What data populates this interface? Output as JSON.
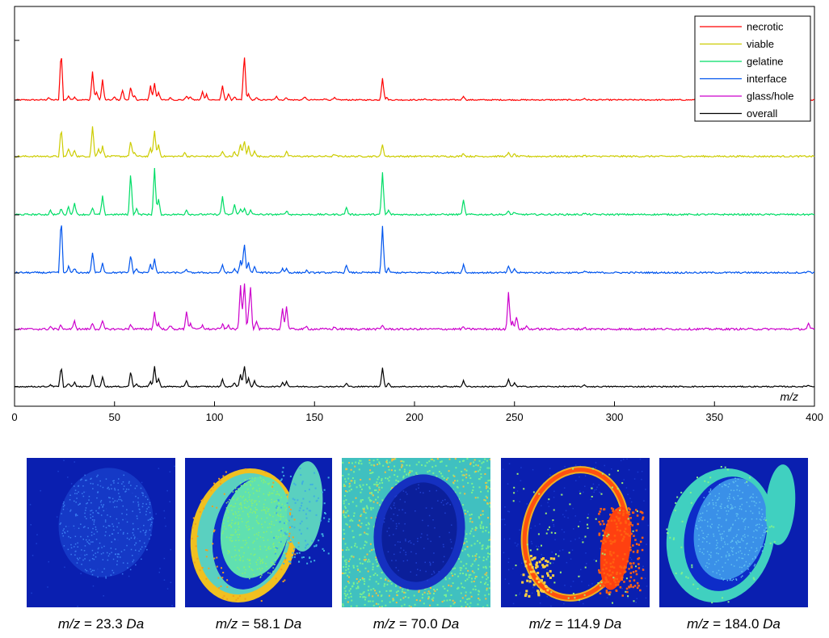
{
  "chart_data": {
    "type": "line",
    "xlabel": "m/z",
    "ylabel": "",
    "xlim": [
      0,
      400
    ],
    "xticks": [
      0,
      50,
      100,
      150,
      200,
      250,
      300,
      350,
      400
    ],
    "xtick_labels": [
      "0",
      "50",
      "100",
      "150",
      "200",
      "250",
      "300",
      "350",
      "400"
    ],
    "legend_position": "top-right",
    "series": [
      {
        "name": "necrotic",
        "color": "#ff0000",
        "baseline_noise": 0.3,
        "peaks": [
          [
            17,
            0.6
          ],
          [
            23.3,
            12.5
          ],
          [
            27,
            1
          ],
          [
            30,
            0.8
          ],
          [
            39,
            7
          ],
          [
            41,
            2
          ],
          [
            44,
            5
          ],
          [
            50,
            0.7
          ],
          [
            54,
            2.4
          ],
          [
            58.1,
            3.2
          ],
          [
            60,
            1
          ],
          [
            68,
            3.5
          ],
          [
            70,
            4.2
          ],
          [
            72,
            2
          ],
          [
            78,
            0.6
          ],
          [
            86,
            1
          ],
          [
            88,
            0.8
          ],
          [
            94,
            2
          ],
          [
            96,
            1.4
          ],
          [
            104,
            3.5
          ],
          [
            107,
            1.5
          ],
          [
            110,
            0.8
          ],
          [
            114.9,
            11.5
          ],
          [
            117,
            1.5
          ],
          [
            121,
            0.5
          ],
          [
            131,
            1
          ],
          [
            136,
            0.6
          ],
          [
            145,
            0.8
          ],
          [
            155,
            0.4
          ],
          [
            160,
            0.5
          ],
          [
            184,
            5.5
          ],
          [
            186,
            0.6
          ],
          [
            205,
            0.3
          ],
          [
            224.5,
            1
          ],
          [
            285,
            0.4
          ]
        ]
      },
      {
        "name": "viable",
        "color": "#cccc00",
        "baseline_noise": 0.4,
        "peaks": [
          [
            23.3,
            7
          ],
          [
            27,
            2
          ],
          [
            30,
            1.5
          ],
          [
            39,
            7.5
          ],
          [
            42,
            2
          ],
          [
            44,
            2.5
          ],
          [
            58.1,
            3.8
          ],
          [
            60,
            1
          ],
          [
            68,
            2
          ],
          [
            70,
            6.5
          ],
          [
            72,
            3
          ],
          [
            85,
            1
          ],
          [
            104,
            1.2
          ],
          [
            110,
            1.2
          ],
          [
            113,
            3
          ],
          [
            114.9,
            4
          ],
          [
            117,
            2.5
          ],
          [
            120,
            1.5
          ],
          [
            136,
            1.2
          ],
          [
            160,
            0.5
          ],
          [
            184,
            3
          ],
          [
            224.5,
            0.8
          ],
          [
            247,
            0.8
          ],
          [
            250,
            0.5
          ],
          [
            285,
            0.3
          ]
        ]
      },
      {
        "name": "gelatine",
        "color": "#00dd66",
        "baseline_noise": 0.4,
        "peaks": [
          [
            18,
            1
          ],
          [
            23.3,
            1.5
          ],
          [
            27,
            2
          ],
          [
            30,
            3
          ],
          [
            39,
            1.5
          ],
          [
            44,
            4.5
          ],
          [
            58.1,
            10.5
          ],
          [
            61,
            1.5
          ],
          [
            70,
            11.5
          ],
          [
            72,
            4
          ],
          [
            86,
            1.2
          ],
          [
            104,
            4.5
          ],
          [
            110,
            2.5
          ],
          [
            113,
            1.5
          ],
          [
            115,
            1.5
          ],
          [
            118,
            1
          ],
          [
            136,
            1
          ],
          [
            166,
            1.8
          ],
          [
            184,
            10.5
          ],
          [
            187,
            1
          ],
          [
            224.5,
            3.5
          ],
          [
            247,
            0.8
          ],
          [
            250,
            0.6
          ],
          [
            285,
            0.3
          ]
        ]
      },
      {
        "name": "interface",
        "color": "#0055ee",
        "baseline_noise": 0.4,
        "peaks": [
          [
            23.3,
            14
          ],
          [
            27,
            1.5
          ],
          [
            30,
            1
          ],
          [
            39,
            5
          ],
          [
            44,
            2.5
          ],
          [
            58.1,
            4.5
          ],
          [
            61,
            1
          ],
          [
            68,
            2
          ],
          [
            70,
            3.5
          ],
          [
            86,
            0.8
          ],
          [
            104,
            2
          ],
          [
            110,
            1
          ],
          [
            113,
            3
          ],
          [
            114.9,
            7.5
          ],
          [
            117,
            2.5
          ],
          [
            120,
            1.5
          ],
          [
            134,
            1
          ],
          [
            136,
            1
          ],
          [
            146,
            0.5
          ],
          [
            166,
            2
          ],
          [
            184,
            11.5
          ],
          [
            187,
            1
          ],
          [
            224.5,
            2
          ],
          [
            247,
            1.5
          ],
          [
            250,
            1
          ],
          [
            285,
            0.3
          ],
          [
            397,
            0.5
          ]
        ]
      },
      {
        "name": "glass/hole",
        "color": "#cc00cc",
        "baseline_noise": 0.5,
        "peaks": [
          [
            18,
            0.6
          ],
          [
            23.3,
            1
          ],
          [
            30,
            2
          ],
          [
            39,
            1.5
          ],
          [
            44,
            2
          ],
          [
            58.1,
            1.3
          ],
          [
            70,
            4.2
          ],
          [
            72,
            1.5
          ],
          [
            78,
            0.8
          ],
          [
            86,
            4.5
          ],
          [
            88,
            1.5
          ],
          [
            94,
            1
          ],
          [
            104,
            1.2
          ],
          [
            107,
            1
          ],
          [
            113,
            11
          ],
          [
            114.9,
            12.5
          ],
          [
            117,
            3
          ],
          [
            118,
            10
          ],
          [
            121,
            2
          ],
          [
            134,
            5.2
          ],
          [
            136,
            5.8
          ],
          [
            146,
            0.6
          ],
          [
            160,
            0.5
          ],
          [
            184,
            1
          ],
          [
            224.5,
            0.5
          ],
          [
            247,
            9.2
          ],
          [
            249,
            2
          ],
          [
            251,
            3
          ],
          [
            256,
            0.8
          ],
          [
            285,
            0.4
          ],
          [
            397,
            1.3
          ]
        ]
      },
      {
        "name": "overall",
        "color": "#000000",
        "baseline_noise": 0.3,
        "peaks": [
          [
            18,
            0.5
          ],
          [
            23.3,
            5
          ],
          [
            27,
            0.8
          ],
          [
            30,
            1
          ],
          [
            39,
            3
          ],
          [
            44,
            2.5
          ],
          [
            58.1,
            3.8
          ],
          [
            61,
            0.8
          ],
          [
            68,
            1.2
          ],
          [
            70,
            5
          ],
          [
            72,
            2
          ],
          [
            86,
            1.3
          ],
          [
            104,
            1.8
          ],
          [
            110,
            1
          ],
          [
            113,
            3
          ],
          [
            114.9,
            5.5
          ],
          [
            117,
            2
          ],
          [
            120,
            1.5
          ],
          [
            134,
            1
          ],
          [
            136,
            1.3
          ],
          [
            166,
            0.8
          ],
          [
            184,
            4.8
          ],
          [
            187,
            0.8
          ],
          [
            224.5,
            1.5
          ],
          [
            247,
            1.8
          ],
          [
            250,
            1
          ],
          [
            285,
            0.3
          ],
          [
            397,
            0.4
          ]
        ]
      }
    ]
  },
  "ion_images": [
    {
      "mz_prefix": "m/z",
      "value": "= 23.3",
      "unit": "Da",
      "pattern": "low"
    },
    {
      "mz_prefix": "m/z",
      "value": "= 58.1",
      "unit": "Da",
      "pattern": "viable"
    },
    {
      "mz_prefix": "m/z",
      "value": "= 70.0",
      "unit": "Da",
      "pattern": "gelatine"
    },
    {
      "mz_prefix": "m/z",
      "value": "= 114.9",
      "unit": "Da",
      "pattern": "ring"
    },
    {
      "mz_prefix": "m/z",
      "value": "= 184.0",
      "unit": "Da",
      "pattern": "interface"
    }
  ]
}
